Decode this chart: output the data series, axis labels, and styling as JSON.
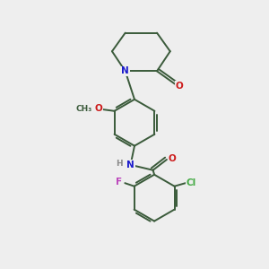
{
  "bg_color": "#eeeeee",
  "bond_color": "#3a5a3a",
  "atom_colors": {
    "N": "#1a1acc",
    "O": "#cc1a1a",
    "F": "#bb44bb",
    "Cl": "#44aa44",
    "H": "#888888",
    "C": "#3a5a3a"
  },
  "figsize": [
    3.0,
    3.0
  ],
  "dpi": 100,
  "lw": 1.4,
  "fs": 7.5
}
